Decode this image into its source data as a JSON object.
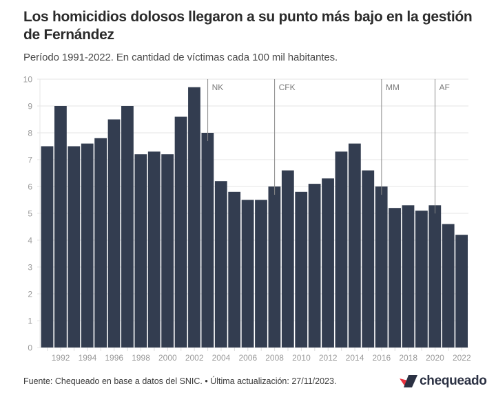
{
  "header": {
    "title": "Los homicidios dolosos llegaron a su punto más bajo en la gestión de Fernández",
    "subtitle": "Período 1991-2022. En cantidad de víctimas cada 100 mil habitantes."
  },
  "footer": {
    "source": "Fuente: Chequeado en base a datos del SNIC. • Última actualización: 27/11/2023.",
    "logo_text": "chequeado"
  },
  "colors": {
    "bar": "#333d50",
    "grid": "#e6e6e6",
    "axis_text": "#9a9a9a",
    "annotation_line": "#8a8a8a",
    "annotation_text": "#7a7a7a",
    "logo_red": "#e8323f",
    "logo_navy": "#2b3143"
  },
  "chart_data": {
    "type": "bar",
    "title": "Los homicidios dolosos llegaron a su punto más bajo en la gestión de Fernández",
    "subtitle": "Período 1991-2022. En cantidad de víctimas cada 100 mil habitantes.",
    "xlabel": "",
    "ylabel": "",
    "ylim": [
      0,
      10
    ],
    "yticks": [
      0,
      1,
      2,
      3,
      4,
      5,
      6,
      7,
      8,
      9,
      10
    ],
    "grid": true,
    "categories": [
      1991,
      1992,
      1993,
      1994,
      1995,
      1996,
      1997,
      1998,
      1999,
      2000,
      2001,
      2002,
      2003,
      2004,
      2005,
      2006,
      2007,
      2008,
      2009,
      2010,
      2011,
      2012,
      2013,
      2014,
      2015,
      2016,
      2017,
      2018,
      2019,
      2020,
      2021,
      2022
    ],
    "xtick_labels": [
      "1992",
      "1994",
      "1996",
      "1998",
      "2000",
      "2002",
      "2004",
      "2006",
      "2008",
      "2010",
      "2012",
      "2014",
      "2016",
      "2018",
      "2020",
      "2022"
    ],
    "values": [
      7.5,
      9.0,
      7.5,
      7.6,
      7.8,
      8.5,
      9.0,
      7.2,
      7.3,
      7.2,
      8.6,
      9.7,
      8.0,
      6.2,
      5.8,
      5.5,
      5.5,
      6.0,
      6.6,
      5.8,
      6.1,
      6.3,
      7.3,
      7.6,
      6.6,
      6.0,
      5.2,
      5.3,
      5.1,
      5.3,
      4.6,
      4.2
    ],
    "annotations": [
      {
        "label": "NK",
        "year": 2003
      },
      {
        "label": "CFK",
        "year": 2008
      },
      {
        "label": "MM",
        "year": 2016
      },
      {
        "label": "AF",
        "year": 2020
      }
    ]
  }
}
